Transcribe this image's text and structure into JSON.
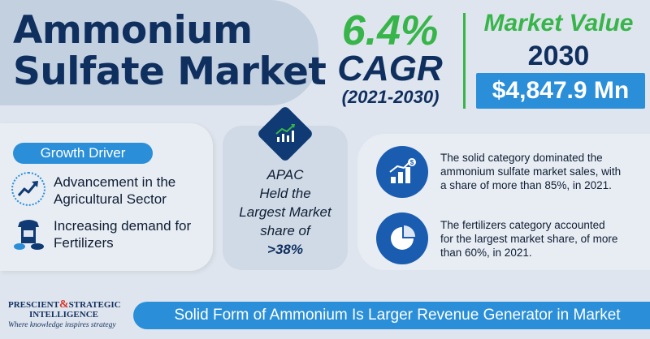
{
  "title": {
    "line1": "Ammonium",
    "line2": "Sulfate Market"
  },
  "cagr": {
    "value": "6.4%",
    "label": "CAGR",
    "period": "(2021-2030)"
  },
  "market_value": {
    "label": "Market Value",
    "year": "2030",
    "value": "$4,847.9 Mn"
  },
  "growth_driver": {
    "heading": "Growth Driver",
    "items": [
      {
        "line1": "Advancement in the",
        "line2": "Agricultural Sector",
        "icon": "trend-up-icon"
      },
      {
        "line1": "Increasing demand for",
        "line2": "Fertilizers",
        "icon": "fertilizer-bag-icon"
      }
    ]
  },
  "region": {
    "line1": "APAC",
    "line2": "Held the",
    "line3": "Largest Market",
    "line4": "share of",
    "share": ">38%",
    "icon": "growth-chart-icon"
  },
  "highlights": [
    {
      "line1": "The solid category dominated the",
      "line2": "ammonium sulfate market sales, with",
      "line3": "a share of more than 85%, in 2021.",
      "icon": "bar-chart-dollar-icon"
    },
    {
      "line1": "The fertilizers category accounted",
      "line2": "for the largest market share, of more",
      "line3": "than 60%, in 2021.",
      "icon": "pie-chart-icon"
    }
  ],
  "banner": "Solid Form of Ammonium Is Larger Revenue Generator in Market",
  "logo": {
    "line1a": "PRESCIENT",
    "amp": "&",
    "line1b": "STRATEGIC",
    "line2": "INTELLIGENCE",
    "tagline": "Where knowledge inspires strategy"
  },
  "colors": {
    "navy": "#0f2f5f",
    "green": "#38b54a",
    "blue": "#2a8fd8",
    "background": "#dfe5ee"
  }
}
